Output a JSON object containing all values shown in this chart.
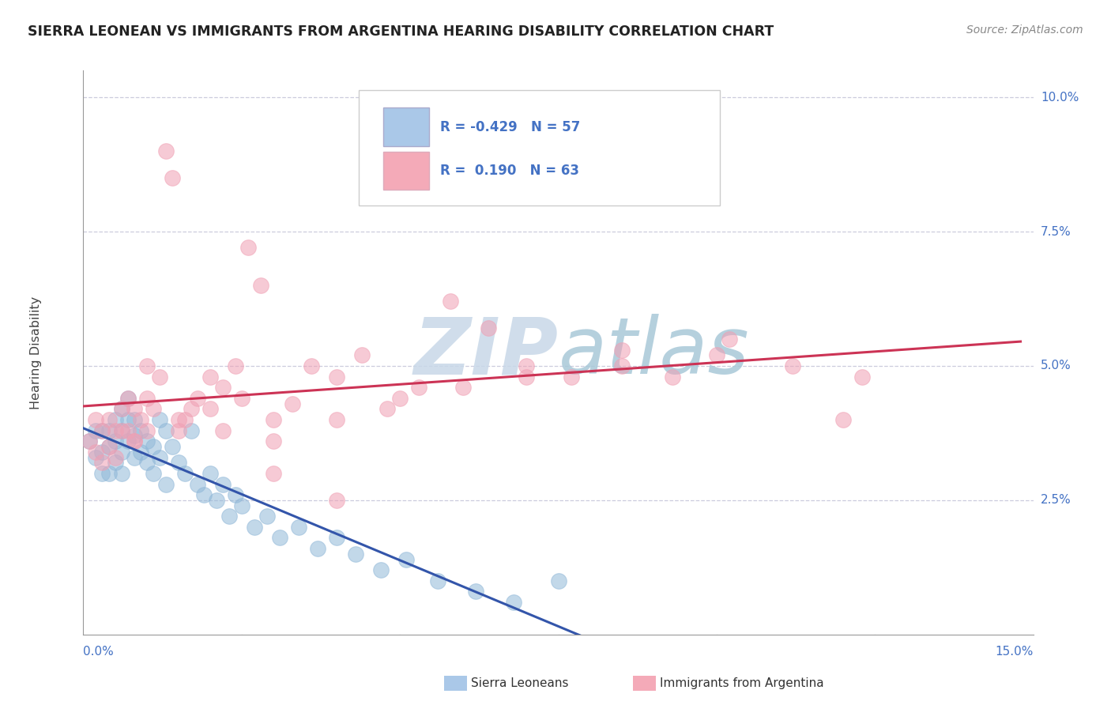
{
  "title": "SIERRA LEONEAN VS IMMIGRANTS FROM ARGENTINA HEARING DISABILITY CORRELATION CHART",
  "source": "Source: ZipAtlas.com",
  "ylabel": "Hearing Disability",
  "xlim": [
    0.0,
    0.15
  ],
  "ylim": [
    0.0,
    0.105
  ],
  "yticks": [
    0.0,
    0.025,
    0.05,
    0.075,
    0.1
  ],
  "yticklabels": [
    "",
    "2.5%",
    "5.0%",
    "7.5%",
    "10.0%"
  ],
  "xtick_positions": [
    0.0,
    0.025,
    0.05,
    0.075,
    0.1,
    0.125,
    0.15
  ],
  "sierra_color": "#90b8d8",
  "argentina_color": "#f0a0b4",
  "sierra_line_color": "#3355aa",
  "argentina_line_color": "#cc3355",
  "legend_r1_color": "#4472c4",
  "legend_r2_color": "#4472c4",
  "legend_sq1_color": "#aac8e8",
  "legend_sq2_color": "#f4aab8",
  "watermark_color": "#ccdde8",
  "grid_color": "#ccccdd",
  "title_color": "#222222",
  "source_color": "#888888",
  "axis_label_color": "#4472c4",
  "sierra_x": [
    0.001,
    0.002,
    0.002,
    0.003,
    0.003,
    0.003,
    0.004,
    0.004,
    0.004,
    0.005,
    0.005,
    0.005,
    0.006,
    0.006,
    0.006,
    0.006,
    0.007,
    0.007,
    0.007,
    0.008,
    0.008,
    0.008,
    0.009,
    0.009,
    0.01,
    0.01,
    0.011,
    0.011,
    0.012,
    0.012,
    0.013,
    0.013,
    0.014,
    0.015,
    0.016,
    0.017,
    0.018,
    0.019,
    0.02,
    0.021,
    0.022,
    0.023,
    0.024,
    0.025,
    0.027,
    0.029,
    0.031,
    0.034,
    0.037,
    0.04,
    0.043,
    0.047,
    0.051,
    0.056,
    0.062,
    0.068,
    0.075
  ],
  "sierra_y": [
    0.036,
    0.038,
    0.033,
    0.038,
    0.034,
    0.03,
    0.038,
    0.035,
    0.03,
    0.04,
    0.036,
    0.032,
    0.042,
    0.038,
    0.034,
    0.03,
    0.044,
    0.04,
    0.036,
    0.04,
    0.037,
    0.033,
    0.038,
    0.034,
    0.036,
    0.032,
    0.035,
    0.03,
    0.04,
    0.033,
    0.038,
    0.028,
    0.035,
    0.032,
    0.03,
    0.038,
    0.028,
    0.026,
    0.03,
    0.025,
    0.028,
    0.022,
    0.026,
    0.024,
    0.02,
    0.022,
    0.018,
    0.02,
    0.016,
    0.018,
    0.015,
    0.012,
    0.014,
    0.01,
    0.008,
    0.006,
    0.01
  ],
  "argentina_x": [
    0.001,
    0.002,
    0.002,
    0.003,
    0.003,
    0.004,
    0.004,
    0.005,
    0.005,
    0.006,
    0.006,
    0.007,
    0.007,
    0.008,
    0.008,
    0.009,
    0.01,
    0.01,
    0.011,
    0.012,
    0.013,
    0.014,
    0.015,
    0.016,
    0.017,
    0.018,
    0.02,
    0.022,
    0.024,
    0.026,
    0.028,
    0.03,
    0.033,
    0.036,
    0.04,
    0.044,
    0.048,
    0.053,
    0.058,
    0.064,
    0.07,
    0.077,
    0.085,
    0.093,
    0.102,
    0.112,
    0.123,
    0.022,
    0.03,
    0.04,
    0.05,
    0.06,
    0.07,
    0.085,
    0.1,
    0.12,
    0.008,
    0.01,
    0.015,
    0.02,
    0.025,
    0.03,
    0.04
  ],
  "argentina_y": [
    0.036,
    0.04,
    0.034,
    0.038,
    0.032,
    0.04,
    0.035,
    0.038,
    0.033,
    0.042,
    0.038,
    0.044,
    0.038,
    0.042,
    0.036,
    0.04,
    0.05,
    0.044,
    0.042,
    0.048,
    0.09,
    0.085,
    0.038,
    0.04,
    0.042,
    0.044,
    0.048,
    0.046,
    0.05,
    0.072,
    0.065,
    0.04,
    0.043,
    0.05,
    0.048,
    0.052,
    0.042,
    0.046,
    0.062,
    0.057,
    0.05,
    0.048,
    0.053,
    0.048,
    0.055,
    0.05,
    0.048,
    0.038,
    0.036,
    0.04,
    0.044,
    0.046,
    0.048,
    0.05,
    0.052,
    0.04,
    0.036,
    0.038,
    0.04,
    0.042,
    0.044,
    0.03,
    0.025
  ]
}
